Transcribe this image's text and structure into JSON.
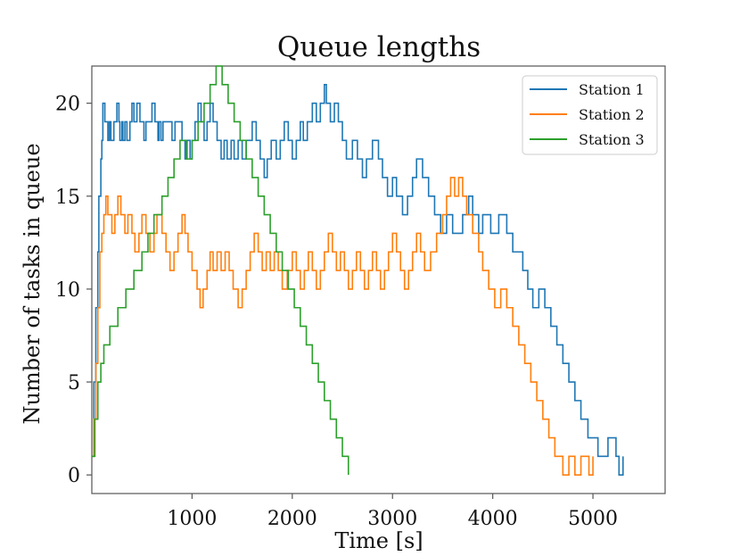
{
  "colors": {
    "series_1": "#1f77b4",
    "series_2": "#ff7f0e",
    "series_3": "#2ca02c"
  },
  "chart_data": {
    "type": "line",
    "title": "Queue lengths",
    "xlabel": "Time [s]",
    "ylabel": "Number of tasks in queue",
    "xlim": [
      0,
      5720
    ],
    "ylim": [
      -1,
      22
    ],
    "grid": false,
    "legend_position": "top-right",
    "x_ticks": [
      {
        "value": 1000,
        "label": "1000"
      },
      {
        "value": 2000,
        "label": "2000"
      },
      {
        "value": 3000,
        "label": "3000"
      },
      {
        "value": 4000,
        "label": "4000"
      },
      {
        "value": 5000,
        "label": "5000"
      }
    ],
    "y_ticks": [
      {
        "value": 0,
        "label": "0"
      },
      {
        "value": 5,
        "label": "5"
      },
      {
        "value": 10,
        "label": "10"
      },
      {
        "value": 15,
        "label": "15"
      },
      {
        "value": 20,
        "label": "20"
      }
    ],
    "series": [
      {
        "name": "Station 1",
        "color": "#1f77b4",
        "points": [
          [
            0,
            1
          ],
          [
            20,
            5
          ],
          [
            40,
            9
          ],
          [
            60,
            12
          ],
          [
            70,
            15
          ],
          [
            90,
            17
          ],
          [
            100,
            18
          ],
          [
            110,
            20
          ],
          [
            130,
            19
          ],
          [
            160,
            18
          ],
          [
            175,
            19
          ],
          [
            190,
            18
          ],
          [
            220,
            19
          ],
          [
            250,
            20
          ],
          [
            270,
            19
          ],
          [
            280,
            18
          ],
          [
            300,
            19
          ],
          [
            310,
            18
          ],
          [
            330,
            19
          ],
          [
            350,
            18
          ],
          [
            380,
            19
          ],
          [
            400,
            20
          ],
          [
            420,
            19
          ],
          [
            450,
            20
          ],
          [
            480,
            19
          ],
          [
            520,
            18
          ],
          [
            540,
            19
          ],
          [
            600,
            20
          ],
          [
            630,
            19
          ],
          [
            660,
            18
          ],
          [
            670,
            19
          ],
          [
            690,
            18
          ],
          [
            710,
            19
          ],
          [
            800,
            18
          ],
          [
            830,
            19
          ],
          [
            900,
            18
          ],
          [
            930,
            17
          ],
          [
            950,
            18
          ],
          [
            980,
            17
          ],
          [
            1000,
            18
          ],
          [
            1030,
            19
          ],
          [
            1060,
            20
          ],
          [
            1090,
            19
          ],
          [
            1120,
            18
          ],
          [
            1150,
            19
          ],
          [
            1180,
            20
          ],
          [
            1210,
            19
          ],
          [
            1250,
            18
          ],
          [
            1290,
            17
          ],
          [
            1320,
            18
          ],
          [
            1350,
            17
          ],
          [
            1390,
            18
          ],
          [
            1420,
            17
          ],
          [
            1460,
            18
          ],
          [
            1500,
            17
          ],
          [
            1540,
            18
          ],
          [
            1600,
            19
          ],
          [
            1640,
            18
          ],
          [
            1680,
            17
          ],
          [
            1720,
            16
          ],
          [
            1750,
            17
          ],
          [
            1790,
            18
          ],
          [
            1840,
            17
          ],
          [
            1880,
            18
          ],
          [
            1920,
            19
          ],
          [
            1960,
            18
          ],
          [
            2000,
            17
          ],
          [
            2040,
            18
          ],
          [
            2080,
            19
          ],
          [
            2110,
            18
          ],
          [
            2150,
            19
          ],
          [
            2200,
            20
          ],
          [
            2240,
            19
          ],
          [
            2280,
            20
          ],
          [
            2320,
            21
          ],
          [
            2340,
            20
          ],
          [
            2380,
            19
          ],
          [
            2420,
            20
          ],
          [
            2460,
            19
          ],
          [
            2500,
            18
          ],
          [
            2540,
            17
          ],
          [
            2600,
            18
          ],
          [
            2650,
            17
          ],
          [
            2700,
            16
          ],
          [
            2740,
            17
          ],
          [
            2800,
            18
          ],
          [
            2860,
            17
          ],
          [
            2900,
            16
          ],
          [
            2950,
            15
          ],
          [
            3000,
            16
          ],
          [
            3040,
            15
          ],
          [
            3100,
            14
          ],
          [
            3150,
            15
          ],
          [
            3200,
            16
          ],
          [
            3240,
            17
          ],
          [
            3300,
            16
          ],
          [
            3360,
            15
          ],
          [
            3420,
            14
          ],
          [
            3480,
            13
          ],
          [
            3540,
            14
          ],
          [
            3600,
            13
          ],
          [
            3700,
            14
          ],
          [
            3760,
            15
          ],
          [
            3800,
            14
          ],
          [
            3860,
            13
          ],
          [
            3900,
            14
          ],
          [
            3980,
            13
          ],
          [
            4060,
            14
          ],
          [
            4140,
            13
          ],
          [
            4200,
            12
          ],
          [
            4300,
            11
          ],
          [
            4350,
            10
          ],
          [
            4400,
            9
          ],
          [
            4460,
            10
          ],
          [
            4520,
            9
          ],
          [
            4580,
            8
          ],
          [
            4640,
            7
          ],
          [
            4700,
            6
          ],
          [
            4760,
            5
          ],
          [
            4820,
            4
          ],
          [
            4880,
            3
          ],
          [
            4950,
            2
          ],
          [
            5050,
            1
          ],
          [
            5150,
            2
          ],
          [
            5230,
            1
          ],
          [
            5260,
            0
          ],
          [
            5300,
            1
          ]
        ]
      },
      {
        "name": "Station 2",
        "color": "#ff7f0e",
        "points": [
          [
            0,
            1
          ],
          [
            20,
            3
          ],
          [
            40,
            6
          ],
          [
            60,
            9
          ],
          [
            80,
            12
          ],
          [
            100,
            13
          ],
          [
            120,
            14
          ],
          [
            140,
            15
          ],
          [
            160,
            14
          ],
          [
            200,
            13
          ],
          [
            230,
            14
          ],
          [
            260,
            15
          ],
          [
            290,
            14
          ],
          [
            330,
            13
          ],
          [
            360,
            14
          ],
          [
            400,
            13
          ],
          [
            430,
            12
          ],
          [
            470,
            13
          ],
          [
            500,
            14
          ],
          [
            540,
            13
          ],
          [
            580,
            12
          ],
          [
            620,
            13
          ],
          [
            650,
            14
          ],
          [
            700,
            13
          ],
          [
            740,
            12
          ],
          [
            780,
            11
          ],
          [
            820,
            12
          ],
          [
            860,
            13
          ],
          [
            900,
            14
          ],
          [
            930,
            13
          ],
          [
            960,
            12
          ],
          [
            1000,
            11
          ],
          [
            1050,
            10
          ],
          [
            1080,
            9
          ],
          [
            1110,
            10
          ],
          [
            1150,
            11
          ],
          [
            1180,
            12
          ],
          [
            1210,
            11
          ],
          [
            1250,
            12
          ],
          [
            1290,
            11
          ],
          [
            1330,
            12
          ],
          [
            1370,
            11
          ],
          [
            1410,
            10
          ],
          [
            1460,
            9
          ],
          [
            1500,
            10
          ],
          [
            1540,
            11
          ],
          [
            1580,
            12
          ],
          [
            1620,
            13
          ],
          [
            1660,
            12
          ],
          [
            1700,
            11
          ],
          [
            1740,
            12
          ],
          [
            1780,
            11
          ],
          [
            1820,
            12
          ],
          [
            1860,
            11
          ],
          [
            1900,
            10
          ],
          [
            1950,
            11
          ],
          [
            2000,
            12
          ],
          [
            2040,
            11
          ],
          [
            2080,
            10
          ],
          [
            2120,
            11
          ],
          [
            2160,
            12
          ],
          [
            2200,
            11
          ],
          [
            2240,
            10
          ],
          [
            2280,
            11
          ],
          [
            2320,
            12
          ],
          [
            2360,
            13
          ],
          [
            2400,
            12
          ],
          [
            2440,
            11
          ],
          [
            2480,
            12
          ],
          [
            2520,
            11
          ],
          [
            2560,
            10
          ],
          [
            2600,
            11
          ],
          [
            2640,
            12
          ],
          [
            2680,
            11
          ],
          [
            2720,
            10
          ],
          [
            2760,
            11
          ],
          [
            2800,
            12
          ],
          [
            2840,
            11
          ],
          [
            2880,
            10
          ],
          [
            2920,
            11
          ],
          [
            2960,
            12
          ],
          [
            3000,
            13
          ],
          [
            3040,
            12
          ],
          [
            3080,
            11
          ],
          [
            3120,
            10
          ],
          [
            3160,
            11
          ],
          [
            3200,
            12
          ],
          [
            3240,
            13
          ],
          [
            3280,
            12
          ],
          [
            3320,
            11
          ],
          [
            3380,
            12
          ],
          [
            3440,
            13
          ],
          [
            3500,
            14
          ],
          [
            3540,
            15
          ],
          [
            3580,
            16
          ],
          [
            3620,
            15
          ],
          [
            3660,
            16
          ],
          [
            3700,
            15
          ],
          [
            3740,
            14
          ],
          [
            3800,
            13
          ],
          [
            3860,
            12
          ],
          [
            3900,
            11
          ],
          [
            3960,
            10
          ],
          [
            4020,
            9
          ],
          [
            4080,
            10
          ],
          [
            4140,
            9
          ],
          [
            4200,
            8
          ],
          [
            4260,
            7
          ],
          [
            4320,
            6
          ],
          [
            4380,
            5
          ],
          [
            4440,
            4
          ],
          [
            4500,
            3
          ],
          [
            4560,
            2
          ],
          [
            4620,
            1
          ],
          [
            4700,
            0
          ],
          [
            4760,
            1
          ],
          [
            4820,
            0
          ],
          [
            4880,
            1
          ],
          [
            4960,
            0
          ],
          [
            5000,
            1
          ]
        ]
      },
      {
        "name": "Station 3",
        "color": "#2ca02c",
        "points": [
          [
            0,
            1
          ],
          [
            30,
            3
          ],
          [
            60,
            5
          ],
          [
            90,
            6
          ],
          [
            120,
            7
          ],
          [
            180,
            8
          ],
          [
            260,
            9
          ],
          [
            340,
            10
          ],
          [
            420,
            11
          ],
          [
            500,
            12
          ],
          [
            560,
            13
          ],
          [
            620,
            14
          ],
          [
            700,
            15
          ],
          [
            760,
            16
          ],
          [
            820,
            17
          ],
          [
            880,
            18
          ],
          [
            940,
            17
          ],
          [
            1000,
            18
          ],
          [
            1060,
            19
          ],
          [
            1120,
            20
          ],
          [
            1180,
            21
          ],
          [
            1240,
            22
          ],
          [
            1300,
            21
          ],
          [
            1360,
            20
          ],
          [
            1420,
            19
          ],
          [
            1480,
            18
          ],
          [
            1540,
            17
          ],
          [
            1600,
            16
          ],
          [
            1660,
            15
          ],
          [
            1720,
            14
          ],
          [
            1780,
            13
          ],
          [
            1840,
            12
          ],
          [
            1900,
            11
          ],
          [
            1960,
            10
          ],
          [
            2020,
            9
          ],
          [
            2080,
            8
          ],
          [
            2140,
            7
          ],
          [
            2200,
            6
          ],
          [
            2260,
            5
          ],
          [
            2320,
            4
          ],
          [
            2380,
            3
          ],
          [
            2440,
            2
          ],
          [
            2500,
            1
          ],
          [
            2560,
            0
          ]
        ]
      }
    ]
  }
}
